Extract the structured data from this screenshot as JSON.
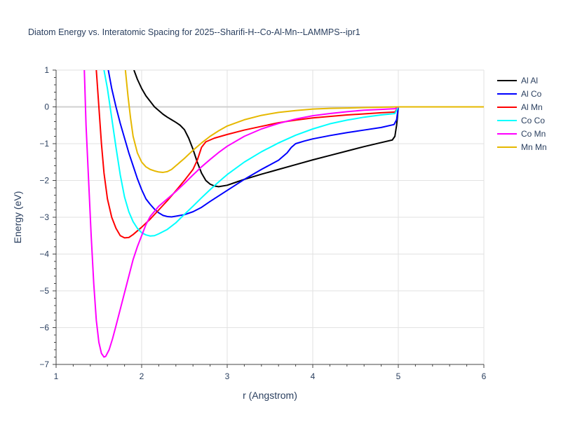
{
  "chart_data": {
    "type": "line",
    "title": "Diatom Energy vs. Interatomic Spacing for 2025--Sharifi-H--Co-Al-Mn--LAMMPS--ipr1",
    "xlabel": "r (Angstrom)",
    "ylabel": "Energy (eV)",
    "xlim": [
      1,
      6
    ],
    "ylim": [
      -7,
      1
    ],
    "xticks": [
      1,
      2,
      3,
      4,
      5,
      6
    ],
    "yticks": [
      1,
      0,
      -1,
      -2,
      -3,
      -4,
      -5,
      -6,
      -7
    ],
    "grid": true,
    "legend_position": "top-right",
    "series": [
      {
        "name": "Al Al",
        "color": "#000000",
        "points": [
          [
            1.91,
            1.0
          ],
          [
            1.95,
            0.75
          ],
          [
            2.0,
            0.5
          ],
          [
            2.05,
            0.3
          ],
          [
            2.1,
            0.15
          ],
          [
            2.15,
            0.0
          ],
          [
            2.2,
            -0.1
          ],
          [
            2.25,
            -0.2
          ],
          [
            2.3,
            -0.28
          ],
          [
            2.35,
            -0.35
          ],
          [
            2.4,
            -0.42
          ],
          [
            2.45,
            -0.5
          ],
          [
            2.5,
            -0.62
          ],
          [
            2.55,
            -0.85
          ],
          [
            2.6,
            -1.15
          ],
          [
            2.65,
            -1.5
          ],
          [
            2.7,
            -1.8
          ],
          [
            2.75,
            -2.0
          ],
          [
            2.8,
            -2.1
          ],
          [
            2.85,
            -2.15
          ],
          [
            2.9,
            -2.17
          ],
          [
            3.0,
            -2.13
          ],
          [
            3.1,
            -2.05
          ],
          [
            3.2,
            -1.97
          ],
          [
            3.4,
            -1.83
          ],
          [
            3.6,
            -1.7
          ],
          [
            3.8,
            -1.57
          ],
          [
            4.0,
            -1.44
          ],
          [
            4.2,
            -1.32
          ],
          [
            4.4,
            -1.2
          ],
          [
            4.6,
            -1.08
          ],
          [
            4.8,
            -0.97
          ],
          [
            4.93,
            -0.9
          ],
          [
            4.96,
            -0.8
          ],
          [
            4.98,
            -0.5
          ],
          [
            5.0,
            0.0
          ],
          [
            6.0,
            0.0
          ]
        ]
      },
      {
        "name": "Al Co",
        "color": "#0000ff",
        "points": [
          [
            1.61,
            1.0
          ],
          [
            1.65,
            0.5
          ],
          [
            1.7,
            0.0
          ],
          [
            1.75,
            -0.45
          ],
          [
            1.8,
            -0.85
          ],
          [
            1.85,
            -1.25
          ],
          [
            1.9,
            -1.6
          ],
          [
            1.95,
            -1.95
          ],
          [
            2.0,
            -2.25
          ],
          [
            2.05,
            -2.5
          ],
          [
            2.1,
            -2.65
          ],
          [
            2.15,
            -2.78
          ],
          [
            2.2,
            -2.88
          ],
          [
            2.25,
            -2.95
          ],
          [
            2.3,
            -2.98
          ],
          [
            2.35,
            -2.99
          ],
          [
            2.4,
            -2.97
          ],
          [
            2.5,
            -2.93
          ],
          [
            2.6,
            -2.85
          ],
          [
            2.7,
            -2.73
          ],
          [
            2.8,
            -2.57
          ],
          [
            2.9,
            -2.42
          ],
          [
            3.0,
            -2.27
          ],
          [
            3.1,
            -2.12
          ],
          [
            3.2,
            -1.97
          ],
          [
            3.4,
            -1.7
          ],
          [
            3.6,
            -1.45
          ],
          [
            3.7,
            -1.25
          ],
          [
            3.75,
            -1.1
          ],
          [
            3.8,
            -1.0
          ],
          [
            3.9,
            -0.93
          ],
          [
            4.0,
            -0.87
          ],
          [
            4.2,
            -0.78
          ],
          [
            4.4,
            -0.7
          ],
          [
            4.6,
            -0.63
          ],
          [
            4.8,
            -0.56
          ],
          [
            4.95,
            -0.48
          ],
          [
            4.98,
            -0.35
          ],
          [
            5.0,
            0.0
          ],
          [
            6.0,
            0.0
          ]
        ]
      },
      {
        "name": "Al Mn",
        "color": "#ff0000",
        "points": [
          [
            1.47,
            1.0
          ],
          [
            1.5,
            0.0
          ],
          [
            1.53,
            -1.0
          ],
          [
            1.56,
            -1.8
          ],
          [
            1.6,
            -2.5
          ],
          [
            1.65,
            -3.0
          ],
          [
            1.7,
            -3.3
          ],
          [
            1.75,
            -3.5
          ],
          [
            1.8,
            -3.56
          ],
          [
            1.85,
            -3.55
          ],
          [
            1.9,
            -3.47
          ],
          [
            2.0,
            -3.27
          ],
          [
            2.1,
            -3.05
          ],
          [
            2.2,
            -2.8
          ],
          [
            2.3,
            -2.55
          ],
          [
            2.4,
            -2.28
          ],
          [
            2.5,
            -2.0
          ],
          [
            2.6,
            -1.7
          ],
          [
            2.65,
            -1.45
          ],
          [
            2.7,
            -1.1
          ],
          [
            2.75,
            -0.95
          ],
          [
            2.85,
            -0.85
          ],
          [
            3.0,
            -0.75
          ],
          [
            3.2,
            -0.63
          ],
          [
            3.4,
            -0.53
          ],
          [
            3.6,
            -0.43
          ],
          [
            3.8,
            -0.36
          ],
          [
            4.0,
            -0.3
          ],
          [
            4.2,
            -0.26
          ],
          [
            4.4,
            -0.22
          ],
          [
            4.6,
            -0.19
          ],
          [
            4.8,
            -0.16
          ],
          [
            4.96,
            -0.14
          ],
          [
            5.0,
            0.0
          ],
          [
            6.0,
            0.0
          ]
        ]
      },
      {
        "name": "Co Co",
        "color": "#00ffff",
        "points": [
          [
            1.56,
            1.0
          ],
          [
            1.6,
            0.5
          ],
          [
            1.65,
            -0.3
          ],
          [
            1.7,
            -1.1
          ],
          [
            1.75,
            -1.85
          ],
          [
            1.8,
            -2.45
          ],
          [
            1.85,
            -2.85
          ],
          [
            1.9,
            -3.12
          ],
          [
            1.95,
            -3.3
          ],
          [
            2.0,
            -3.42
          ],
          [
            2.05,
            -3.48
          ],
          [
            2.1,
            -3.51
          ],
          [
            2.15,
            -3.5
          ],
          [
            2.2,
            -3.45
          ],
          [
            2.3,
            -3.33
          ],
          [
            2.4,
            -3.15
          ],
          [
            2.5,
            -2.92
          ],
          [
            2.6,
            -2.7
          ],
          [
            2.7,
            -2.47
          ],
          [
            2.8,
            -2.25
          ],
          [
            2.9,
            -2.04
          ],
          [
            3.0,
            -1.84
          ],
          [
            3.2,
            -1.5
          ],
          [
            3.4,
            -1.22
          ],
          [
            3.6,
            -0.98
          ],
          [
            3.8,
            -0.77
          ],
          [
            4.0,
            -0.6
          ],
          [
            4.2,
            -0.46
          ],
          [
            4.4,
            -0.36
          ],
          [
            4.6,
            -0.28
          ],
          [
            4.8,
            -0.22
          ],
          [
            4.96,
            -0.18
          ],
          [
            5.0,
            0.0
          ],
          [
            6.0,
            0.0
          ]
        ]
      },
      {
        "name": "Co Mn",
        "color": "#ff00ff",
        "points": [
          [
            1.33,
            1.0
          ],
          [
            1.35,
            -0.5
          ],
          [
            1.38,
            -2.0
          ],
          [
            1.41,
            -3.5
          ],
          [
            1.44,
            -4.8
          ],
          [
            1.47,
            -5.8
          ],
          [
            1.5,
            -6.4
          ],
          [
            1.53,
            -6.7
          ],
          [
            1.56,
            -6.8
          ],
          [
            1.58,
            -6.78
          ],
          [
            1.62,
            -6.6
          ],
          [
            1.66,
            -6.3
          ],
          [
            1.7,
            -5.95
          ],
          [
            1.75,
            -5.5
          ],
          [
            1.8,
            -5.05
          ],
          [
            1.85,
            -4.6
          ],
          [
            1.9,
            -4.15
          ],
          [
            1.95,
            -3.8
          ],
          [
            2.0,
            -3.5
          ],
          [
            2.05,
            -3.2
          ],
          [
            2.1,
            -2.98
          ],
          [
            2.2,
            -2.7
          ],
          [
            2.3,
            -2.5
          ],
          [
            2.4,
            -2.3
          ],
          [
            2.5,
            -2.08
          ],
          [
            2.6,
            -1.85
          ],
          [
            2.7,
            -1.63
          ],
          [
            2.8,
            -1.43
          ],
          [
            2.9,
            -1.24
          ],
          [
            3.0,
            -1.07
          ],
          [
            3.2,
            -0.8
          ],
          [
            3.4,
            -0.6
          ],
          [
            3.6,
            -0.45
          ],
          [
            3.8,
            -0.33
          ],
          [
            4.0,
            -0.24
          ],
          [
            4.2,
            -0.18
          ],
          [
            4.4,
            -0.13
          ],
          [
            4.6,
            -0.09
          ],
          [
            4.8,
            -0.07
          ],
          [
            4.96,
            -0.05
          ],
          [
            5.0,
            0.0
          ],
          [
            6.0,
            0.0
          ]
        ]
      },
      {
        "name": "Mn Mn",
        "color": "#e6b800",
        "points": [
          [
            1.81,
            1.0
          ],
          [
            1.84,
            0.3
          ],
          [
            1.87,
            -0.3
          ],
          [
            1.9,
            -0.8
          ],
          [
            1.95,
            -1.25
          ],
          [
            2.0,
            -1.5
          ],
          [
            2.05,
            -1.63
          ],
          [
            2.1,
            -1.7
          ],
          [
            2.15,
            -1.74
          ],
          [
            2.2,
            -1.77
          ],
          [
            2.25,
            -1.78
          ],
          [
            2.3,
            -1.76
          ],
          [
            2.35,
            -1.7
          ],
          [
            2.4,
            -1.6
          ],
          [
            2.5,
            -1.4
          ],
          [
            2.6,
            -1.18
          ],
          [
            2.7,
            -0.98
          ],
          [
            2.8,
            -0.8
          ],
          [
            2.9,
            -0.65
          ],
          [
            3.0,
            -0.52
          ],
          [
            3.2,
            -0.35
          ],
          [
            3.4,
            -0.23
          ],
          [
            3.6,
            -0.15
          ],
          [
            3.8,
            -0.1
          ],
          [
            4.0,
            -0.06
          ],
          [
            4.2,
            -0.04
          ],
          [
            4.4,
            -0.03
          ],
          [
            4.6,
            -0.02
          ],
          [
            4.8,
            -0.01
          ],
          [
            5.0,
            0.0
          ],
          [
            6.0,
            0.0
          ]
        ]
      }
    ]
  }
}
